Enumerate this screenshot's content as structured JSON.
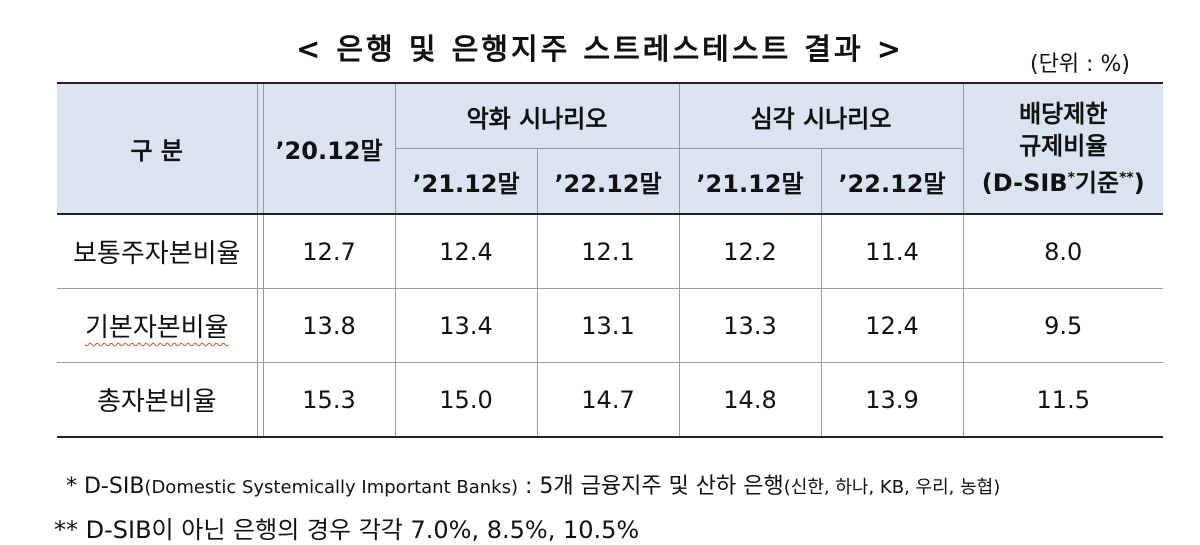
{
  "title": "< 은행 및 은행지주 스트레스테스트 결과 >",
  "unit": "(단위 : %)",
  "header": {
    "category": "구  분",
    "base": "’20.12말",
    "adverse": "악화 시나리오",
    "severe": "심각 시나리오",
    "dividend_line1": "배당제한",
    "dividend_line2": "규제비율",
    "dividend_line3_pre": "(D-SIB",
    "dividend_line3_sup1": "*",
    "dividend_line3_mid": "기준",
    "dividend_line3_sup2": "**",
    "dividend_line3_post": ")",
    "sub1": "’21.12말",
    "sub2": "’22.12말",
    "sub3": "’21.12말",
    "sub4": "’22.12말"
  },
  "rows": [
    {
      "label": "보통주자본비율",
      "values": [
        "12.7",
        "12.4",
        "12.1",
        "12.2",
        "11.4",
        "8.0"
      ]
    },
    {
      "label": "기본자본비율",
      "values": [
        "13.8",
        "13.4",
        "13.1",
        "13.3",
        "12.4",
        "9.5"
      ]
    },
    {
      "label": "총자본비율",
      "values": [
        "15.3",
        "15.0",
        "14.7",
        "14.8",
        "13.9",
        "11.5"
      ]
    }
  ],
  "notes": {
    "n1_pre": "*  D-SIB",
    "n1_small": "(Domestic Systemically Important Banks)",
    "n1_mid": " : 5개 금융지주 및 산하 은행",
    "n1_small2": "(신한, 하나, KB, 우리, 농협)",
    "n2": "** D-SIB이 아닌 은행의 경우 각각 7.0%, 8.5%, 10.5%"
  }
}
